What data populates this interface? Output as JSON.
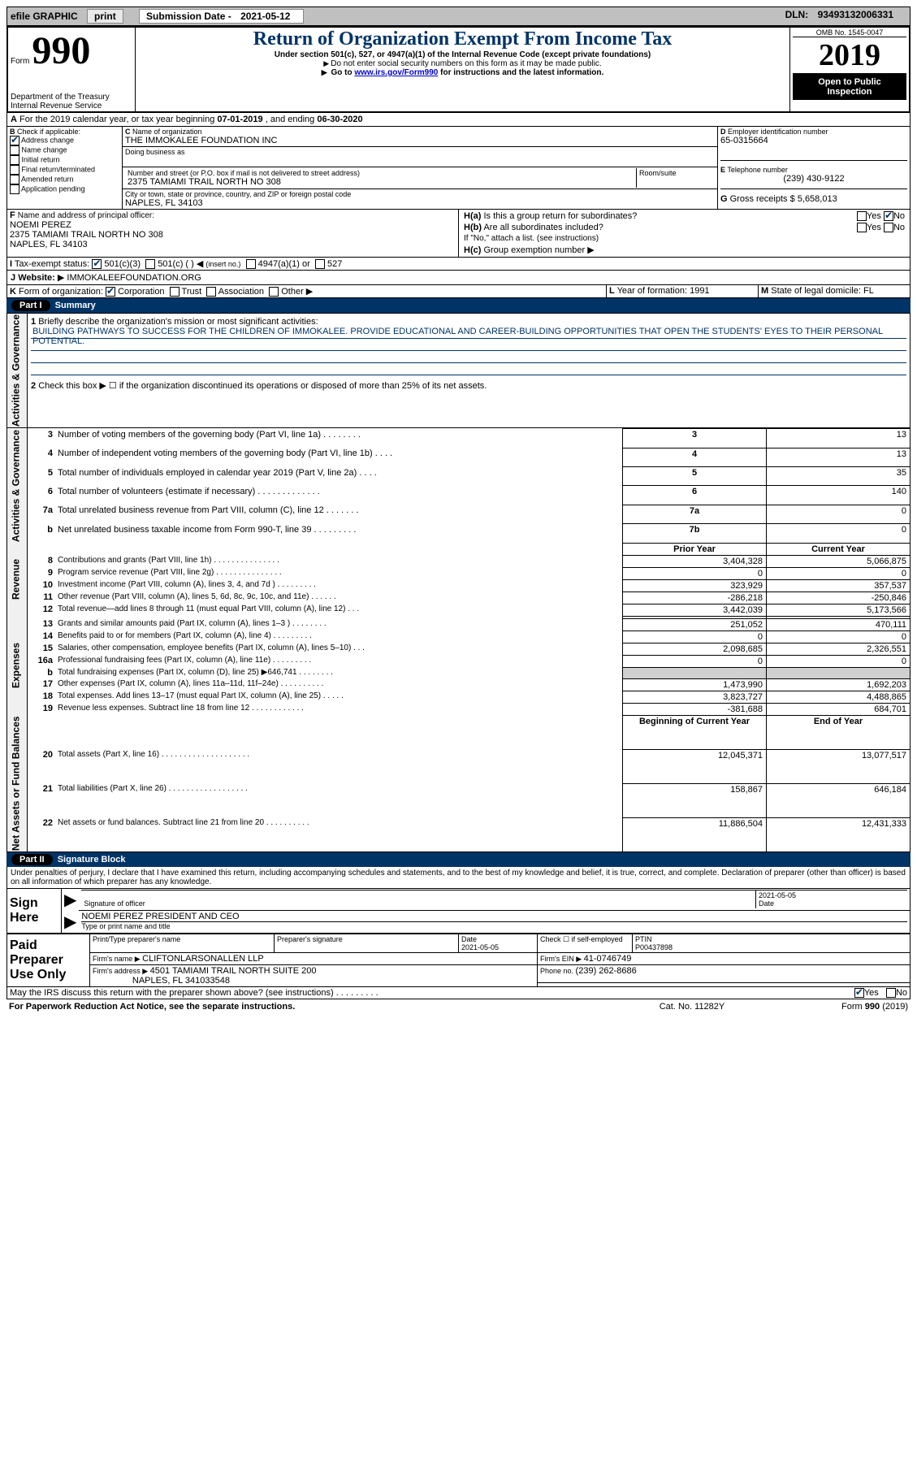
{
  "topbar": {
    "efile": "efile GRAPHIC",
    "print": "print",
    "submission_label": "Submission Date - ",
    "submission_date": "2021-05-12",
    "dln_label": "DLN: ",
    "dln": "93493132006331"
  },
  "header": {
    "form_word": "Form",
    "form_num": "990",
    "dept1": "Department of the Treasury",
    "dept2": "Internal Revenue Service",
    "title": "Return of Organization Exempt From Income Tax",
    "subtitle1": "Under section 501(c), 527, or 4947(a)(1) of the Internal Revenue Code (except private foundations)",
    "subtitle2": "Do not enter social security numbers on this form as it may be made public.",
    "subtitle3_pre": "Go to ",
    "subtitle3_link": "www.irs.gov/Form990",
    "subtitle3_post": " for instructions and the latest information.",
    "omb_label": "OMB No. ",
    "omb": "1545-0047",
    "year": "2019",
    "open": "Open to Public Inspection"
  },
  "periodA": {
    "text_pre": "For the 2019 calendar year, or tax year beginning ",
    "begin": "07-01-2019",
    "mid": " , and ending ",
    "end": "06-30-2020"
  },
  "B": {
    "label": "Check if applicable:",
    "opts": {
      "address": "Address change",
      "name": "Name change",
      "initial": "Initial return",
      "final": "Final return/terminated",
      "amended": "Amended return",
      "app": "Application pending"
    },
    "checked": {
      "address": true
    }
  },
  "C": {
    "name_label": "Name of organization",
    "name": "THE IMMOKALEE FOUNDATION INC",
    "dba_label": "Doing business as",
    "street_label": "Number and street (or P.O. box if mail is not delivered to street address)",
    "room_label": "Room/suite",
    "street": "2375 TAMIAMI TRAIL NORTH NO 308",
    "city_label": "City or town, state or province, country, and ZIP or foreign postal code",
    "city": "NAPLES, FL  34103"
  },
  "D": {
    "label": "Employer identification number",
    "value": "65-0315664"
  },
  "E": {
    "label": "Telephone number",
    "value": "(239) 430-9122"
  },
  "G": {
    "label": "Gross receipts $ ",
    "value": "5,658,013"
  },
  "F": {
    "label": "Name and address of principal officer:",
    "name": "NOEMI PEREZ",
    "addr": "2375 TAMIAMI TRAIL NORTH NO 308",
    "city": "NAPLES, FL  34103"
  },
  "H": {
    "a_label": "Is this a group return for subordinates?",
    "b_label": "Are all subordinates included?",
    "b_note": "If \"No,\" attach a list. (see instructions)",
    "c_label": "Group exemption number",
    "yes": "Yes",
    "no": "No",
    "a_answer_no": true
  },
  "I": {
    "label": "Tax-exempt status:",
    "c501c3": "501(c)(3)",
    "c501c": "501(c) (   )",
    "insert": "(insert no.)",
    "a4947": "4947(a)(1) or",
    "s527": "527",
    "checked_501c3": true
  },
  "J": {
    "label": "Website:",
    "value": "IMMOKALEEFOUNDATION.ORG"
  },
  "K": {
    "label": "Form of organization:",
    "corp": "Corporation",
    "trust": "Trust",
    "assoc": "Association",
    "other": "Other",
    "checked_corp": true
  },
  "L": {
    "label": "Year of formation: ",
    "value": "1991"
  },
  "M": {
    "label": "State of legal domicile: ",
    "value": "FL"
  },
  "partI": {
    "title": "Summary",
    "pill": "Part I",
    "line1_label": "Briefly describe the organization's mission or most significant activities:",
    "mission": "BUILDING PATHWAYS TO SUCCESS FOR THE CHILDREN OF IMMOKALEE. PROVIDE EDUCATIONAL AND CAREER-BUILDING OPPORTUNITIES THAT OPEN THE STUDENTS' EYES TO THEIR PERSONAL POTENTIAL.",
    "line2": "Check this box ▶ ☐  if the organization discontinued its operations or disposed of more than 25% of its net assets.",
    "rows_a": [
      {
        "n": "3",
        "t": "Number of voting members of the governing body (Part VI, line 1a)",
        "box": "3",
        "v": "13"
      },
      {
        "n": "4",
        "t": "Number of independent voting members of the governing body (Part VI, line 1b)",
        "box": "4",
        "v": "13"
      },
      {
        "n": "5",
        "t": "Total number of individuals employed in calendar year 2019 (Part V, line 2a)",
        "box": "5",
        "v": "35"
      },
      {
        "n": "6",
        "t": "Total number of volunteers (estimate if necessary)",
        "box": "6",
        "v": "140"
      },
      {
        "n": "7a",
        "t": "Total unrelated business revenue from Part VIII, column (C), line 12",
        "box": "7a",
        "v": "0"
      },
      {
        "n": "b",
        "t": "Net unrelated business taxable income from Form 990-T, line 39",
        "box": "7b",
        "v": "0"
      }
    ],
    "col_prior": "Prior Year",
    "col_current": "Current Year",
    "rows_rev": [
      {
        "n": "8",
        "t": "Contributions and grants (Part VIII, line 1h)",
        "p": "3,404,328",
        "c": "5,066,875"
      },
      {
        "n": "9",
        "t": "Program service revenue (Part VIII, line 2g)",
        "p": "0",
        "c": "0"
      },
      {
        "n": "10",
        "t": "Investment income (Part VIII, column (A), lines 3, 4, and 7d )",
        "p": "323,929",
        "c": "357,537"
      },
      {
        "n": "11",
        "t": "Other revenue (Part VIII, column (A), lines 5, 6d, 8c, 9c, 10c, and 11e)",
        "p": "-286,218",
        "c": "-250,846"
      },
      {
        "n": "12",
        "t": "Total revenue—add lines 8 through 11 (must equal Part VIII, column (A), line 12)",
        "p": "3,442,039",
        "c": "5,173,566"
      }
    ],
    "rows_exp": [
      {
        "n": "13",
        "t": "Grants and similar amounts paid (Part IX, column (A), lines 1–3 )",
        "p": "251,052",
        "c": "470,111"
      },
      {
        "n": "14",
        "t": "Benefits paid to or for members (Part IX, column (A), line 4)",
        "p": "0",
        "c": "0"
      },
      {
        "n": "15",
        "t": "Salaries, other compensation, employee benefits (Part IX, column (A), lines 5–10)",
        "p": "2,098,685",
        "c": "2,326,551"
      },
      {
        "n": "16a",
        "t": "Professional fundraising fees (Part IX, column (A), line 11e)",
        "p": "0",
        "c": "0"
      },
      {
        "n": "b",
        "t": "Total fundraising expenses (Part IX, column (D), line 25) ▶646,741",
        "p": "",
        "c": "",
        "grey": true
      },
      {
        "n": "17",
        "t": "Other expenses (Part IX, column (A), lines 11a–11d, 11f–24e)",
        "p": "1,473,990",
        "c": "1,692,203"
      },
      {
        "n": "18",
        "t": "Total expenses. Add lines 13–17 (must equal Part IX, column (A), line 25)",
        "p": "3,823,727",
        "c": "4,488,865"
      },
      {
        "n": "19",
        "t": "Revenue less expenses. Subtract line 18 from line 12",
        "p": "-381,688",
        "c": "684,701"
      }
    ],
    "col_begin": "Beginning of Current Year",
    "col_end": "End of Year",
    "rows_net": [
      {
        "n": "20",
        "t": "Total assets (Part X, line 16)",
        "p": "12,045,371",
        "c": "13,077,517"
      },
      {
        "n": "21",
        "t": "Total liabilities (Part X, line 26)",
        "p": "158,867",
        "c": "646,184"
      },
      {
        "n": "22",
        "t": "Net assets or fund balances. Subtract line 21 from line 20",
        "p": "11,886,504",
        "c": "12,431,333"
      }
    ],
    "vlabels": {
      "act": "Activities & Governance",
      "rev": "Revenue",
      "exp": "Expenses",
      "net": "Net Assets or Fund Balances"
    }
  },
  "partII": {
    "pill": "Part II",
    "title": "Signature Block",
    "declaration": "Under penalties of perjury, I declare that I have examined this return, including accompanying schedules and statements, and to the best of my knowledge and belief, it is true, correct, and complete. Declaration of preparer (other than officer) is based on all information of which preparer has any knowledge.",
    "signhere": "Sign Here",
    "sig_officer": "Signature of officer",
    "sig_date": "Date",
    "sig_date_val": "2021-05-05",
    "officer": "NOEMI PEREZ  PRESIDENT AND CEO",
    "type_label": "Type or print name and title",
    "paid": "Paid Preparer Use Only",
    "prep_name_label": "Print/Type preparer's name",
    "prep_sig_label": "Preparer's signature",
    "date_label": "Date",
    "date_val": "2021-05-05",
    "check_self": "Check ☐ if self-employed",
    "ptin_label": "PTIN",
    "ptin": "P00437898",
    "firm_name_label": "Firm's name   ▶ ",
    "firm_name": "CLIFTONLARSONALLEN LLP",
    "firm_ein_label": "Firm's EIN ▶ ",
    "firm_ein": "41-0746749",
    "firm_addr_label": "Firm's address ▶ ",
    "firm_addr1": "4501 TAMIAMI TRAIL NORTH SUITE 200",
    "firm_addr2": "NAPLES, FL  341033548",
    "phone_label": "Phone no. ",
    "phone": "(239) 262-8686",
    "discuss": "May the IRS discuss this return with the preparer shown above? (see instructions)",
    "discuss_yes": true
  },
  "footer": {
    "left": "For Paperwork Reduction Act Notice, see the separate instructions.",
    "mid": "Cat. No. 11282Y",
    "right": "Form 990 (2019)"
  },
  "colors": {
    "navy": "#003366",
    "link": "#0000cc",
    "grey_bg": "#c0c0c0"
  }
}
